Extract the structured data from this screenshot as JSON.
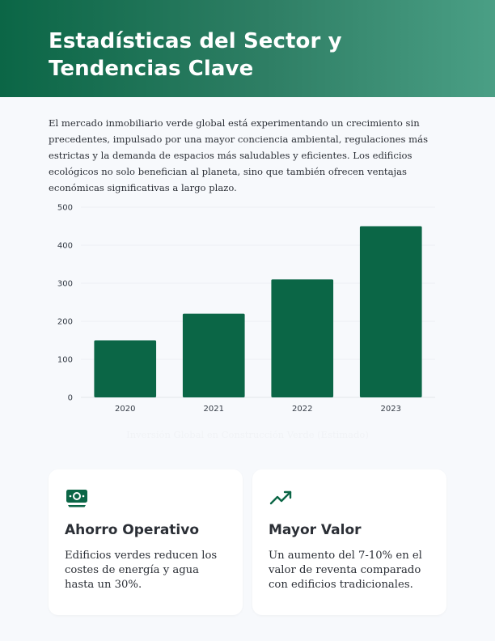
{
  "header": {
    "title_line1": "Estadísticas del Sector y",
    "title_line2": "Tendencias Clave"
  },
  "intro": "El mercado inmobiliario verde global está experimentando un crecimiento sin precedentes, impulsado por una mayor conciencia ambiental, regulaciones más estrictas y la demanda de espacios más saludables y eficientes. Los edificios ecológicos no solo benefician al planeta, sino que también ofrecen ventajas económicas significativas a largo plazo.",
  "chart_data": {
    "type": "bar",
    "categories": [
      "2020",
      "2021",
      "2022",
      "2023"
    ],
    "values": [
      150,
      220,
      310,
      450
    ],
    "title": "Inversión Global en Construcción Verde (Estimado)",
    "xlabel": "",
    "ylabel": "",
    "ylim": [
      0,
      500
    ],
    "yticks": [
      0,
      100,
      200,
      300,
      400,
      500
    ],
    "grid": true,
    "legend": "none",
    "bar_color": "#0b6646",
    "title_color": "#f1f3f6"
  },
  "cards": [
    {
      "icon": "money-bill-icon",
      "title": "Ahorro Operativo",
      "text": "Edificios verdes reducen los costes de energía y agua hasta un 30%."
    },
    {
      "icon": "trending-up-icon",
      "title": "Mayor Valor",
      "text": "Un aumento del 7-10% en el valor de reventa comparado con edificios tradicionales."
    }
  ],
  "colors": {
    "accent": "#0b6646",
    "text": "#2b2f36",
    "background": "#f7f9fc"
  }
}
